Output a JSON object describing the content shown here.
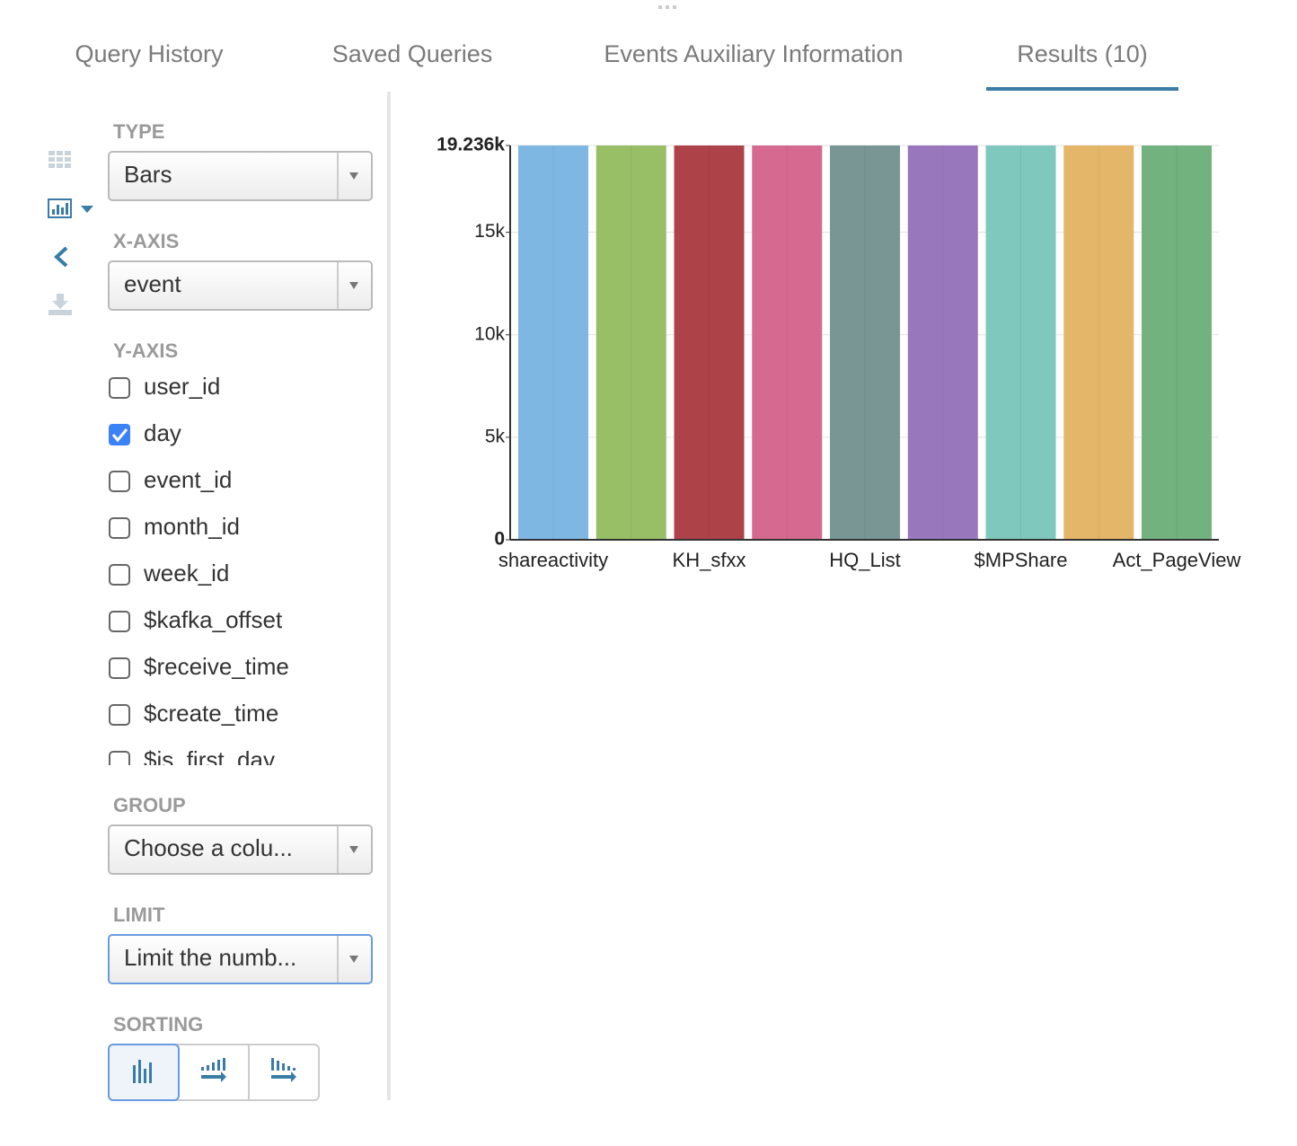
{
  "tabs": [
    "Query History",
    "Saved Queries",
    "Events Auxiliary Information",
    "Results (10)"
  ],
  "sidebar": {
    "type": {
      "label": "TYPE",
      "value": "Bars"
    },
    "x_axis": {
      "label": "X-AXIS",
      "value": "event"
    },
    "y_axis": {
      "label": "Y-AXIS",
      "options": [
        {
          "name": "user_id",
          "checked": false
        },
        {
          "name": "day",
          "checked": true
        },
        {
          "name": "event_id",
          "checked": false
        },
        {
          "name": "month_id",
          "checked": false
        },
        {
          "name": "week_id",
          "checked": false
        },
        {
          "name": "$kafka_offset",
          "checked": false
        },
        {
          "name": "$receive_time",
          "checked": false
        },
        {
          "name": "$create_time",
          "checked": false
        },
        {
          "name": "$is_first_day",
          "checked": false
        }
      ]
    },
    "group": {
      "label": "GROUP",
      "value": "Choose a colu..."
    },
    "limit": {
      "label": "LIMIT",
      "value": "Limit the numb..."
    },
    "sorting": {
      "label": "SORTING"
    }
  },
  "chart_data": {
    "type": "bar",
    "categories": [
      "shareactivity",
      null,
      "KH_sfxx",
      null,
      "HQ_List",
      null,
      "$MPShare",
      null,
      "Act_PageView"
    ],
    "values": [
      19236,
      19236,
      19236,
      19236,
      19236,
      19236,
      19236,
      19236,
      19236
    ],
    "colors": [
      "#7eb7e1",
      "#98be66",
      "#ad4249",
      "#d6698f",
      "#799695",
      "#9977bd",
      "#7fc8bd",
      "#e4b669",
      "#72b27f"
    ],
    "ylim": [
      0,
      19236
    ],
    "yticks": [
      0,
      {
        "value": 5000,
        "label": "5k"
      },
      {
        "value": 10000,
        "label": "10k"
      },
      {
        "value": 15000,
        "label": "15k"
      },
      {
        "value": 19236,
        "label": "19.236k"
      }
    ],
    "grid": true
  }
}
